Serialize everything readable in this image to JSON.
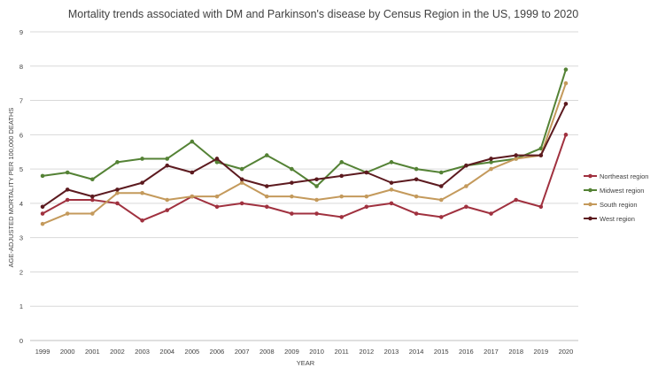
{
  "chart_data": {
    "type": "line",
    "title": "Mortality trends associated with DM and Parkinson's disease by Census Region in the US, 1999 to 2020",
    "xlabel": "YEAR",
    "ylabel": "AGE-ADJUSTED MORTALITY PER 100,000 DEATHS",
    "ylim": [
      0,
      9
    ],
    "yticks": [
      "0",
      "1",
      "2",
      "3",
      "4",
      "5",
      "6",
      "7",
      "8",
      "9"
    ],
    "grid": true,
    "legend_position": "right",
    "categories": [
      "1999",
      "2000",
      "2001",
      "2002",
      "2003",
      "2004",
      "2005",
      "2006",
      "2007",
      "2008",
      "2009",
      "2010",
      "2011",
      "2012",
      "2013",
      "2014",
      "2015",
      "2016",
      "2017",
      "2018",
      "2019",
      "2020"
    ],
    "series": [
      {
        "name": "Northeast region",
        "color": "#A0313F",
        "values": [
          3.7,
          4.1,
          4.1,
          4.0,
          3.5,
          3.8,
          4.2,
          3.9,
          4.0,
          3.9,
          3.7,
          3.7,
          3.6,
          3.9,
          4.0,
          3.7,
          3.6,
          3.9,
          3.7,
          4.1,
          3.9,
          6.0
        ]
      },
      {
        "name": "Midwest region",
        "color": "#548235",
        "values": [
          4.8,
          4.9,
          4.7,
          5.2,
          5.3,
          5.3,
          5.8,
          5.2,
          5.0,
          5.4,
          5.0,
          4.5,
          5.2,
          4.9,
          5.2,
          5.0,
          4.9,
          5.1,
          5.2,
          5.3,
          5.6,
          7.9
        ]
      },
      {
        "name": "South region",
        "color": "#C49A5C",
        "values": [
          3.4,
          3.7,
          3.7,
          4.3,
          4.3,
          4.1,
          4.2,
          4.2,
          4.6,
          4.2,
          4.2,
          4.1,
          4.2,
          4.2,
          4.4,
          4.2,
          4.1,
          4.5,
          5.0,
          5.3,
          5.4,
          7.5
        ]
      },
      {
        "name": "West region",
        "color": "#5C1A1F",
        "values": [
          3.9,
          4.4,
          4.2,
          4.4,
          4.6,
          5.1,
          4.9,
          5.3,
          4.7,
          4.5,
          4.6,
          4.7,
          4.8,
          4.9,
          4.6,
          4.7,
          4.5,
          5.1,
          5.3,
          5.4,
          5.4,
          6.9
        ]
      }
    ]
  }
}
